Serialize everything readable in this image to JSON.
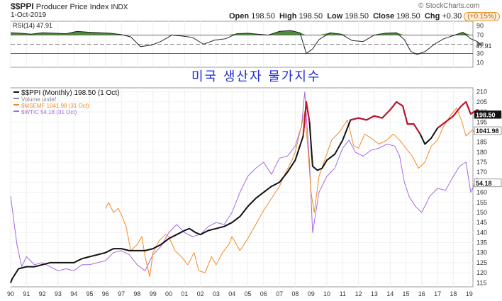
{
  "header": {
    "symbol": "$$PPI",
    "name": "Producer Price Index",
    "exchange": "INDX",
    "date": "1-Oct-2019",
    "open_label": "Open",
    "open": "198.50",
    "high_label": "High",
    "high": "198.50",
    "low_label": "Low",
    "low": "198.50",
    "close_label": "Close",
    "close": "198.50",
    "chg_label": "Chg",
    "chg": "+0.30",
    "chg_pct": "(+0.15%)",
    "watermark": "© StockCharts.com"
  },
  "overlay_text": "미국 생산자 물가지수",
  "colors": {
    "ppi": "#111111",
    "ppi_hi": "#c8102e",
    "msemf": "#f08a24",
    "wtic": "#a46be0",
    "rsi_fill": "#4e8a3c",
    "rsi_low_fill": "#8a3a38"
  },
  "chart_data": [
    {
      "type": "line",
      "title": "RSI(14) 47.91",
      "ylim": [
        0,
        100
      ],
      "levels": [
        70,
        30
      ],
      "ticks": [
        "90",
        "70",
        "50",
        "30",
        "10"
      ],
      "current_label": "47.91",
      "x_years": [
        1990,
        1990.6,
        1991.3,
        1992,
        1992.8,
        1993.5,
        1994.2,
        1995,
        1995.7,
        1996.3,
        1997,
        1997.6,
        1998.2,
        1998.9,
        1999.5,
        2000.2,
        2000.8,
        2001.5,
        2002.2,
        2002.9,
        2003.6,
        2004.3,
        2005,
        2005.6,
        2006.3,
        2007,
        2007.7,
        2008.3,
        2008.7,
        2009.1,
        2009.5,
        2010.2,
        2010.9,
        2011.6,
        2012.3,
        2013,
        2013.7,
        2014.4,
        2014.9,
        2015.3,
        2015.7,
        2016.2,
        2016.8,
        2017.4,
        2018.1,
        2018.6,
        2019.1,
        2019.5,
        2019.75
      ],
      "values": [
        75,
        74,
        72,
        75,
        74,
        73,
        78,
        76,
        75,
        74,
        71,
        66,
        45,
        48,
        56,
        70,
        68,
        65,
        50,
        59,
        62,
        73,
        74,
        72,
        70,
        78,
        80,
        75,
        30,
        40,
        60,
        75,
        72,
        58,
        56,
        70,
        74,
        75,
        60,
        35,
        28,
        34,
        50,
        62,
        70,
        76,
        62,
        56,
        48
      ]
    },
    {
      "type": "line",
      "xlabel": "",
      "ylabel": "",
      "x_ticks": [
        "90",
        "91",
        "92",
        "93",
        "94",
        "95",
        "96",
        "97",
        "98",
        "99",
        "00",
        "01",
        "02",
        "03",
        "04",
        "05",
        "06",
        "07",
        "08",
        "09",
        "10",
        "11",
        "12",
        "13",
        "14",
        "15",
        "16",
        "17",
        "18",
        "19"
      ],
      "y_ticks": [
        "210",
        "205",
        "200",
        "195",
        "190",
        "185",
        "180",
        "175",
        "170",
        "165",
        "160",
        "155",
        "150",
        "145",
        "140",
        "135",
        "130",
        "125",
        "120",
        "115"
      ],
      "ylim": [
        113,
        212
      ],
      "legend": [
        "$$PPI (Monthly) 198.50 (1 Oct)",
        "Volume undef",
        "$MSEMF 1041.98 (31 Oct)",
        "$WTIC 54.18 (31 Oct)"
      ],
      "end_labels": {
        "ppi": "198.50",
        "msemf": "1041.98",
        "wtic": "54.18"
      },
      "series": [
        {
          "name": "$$PPI (Monthly)",
          "x": [
            1990,
            1990.1,
            1990.5,
            1991,
            1991.5,
            1992,
            1992.5,
            1993,
            1993.5,
            1994,
            1994.5,
            1995,
            1995.5,
            1996,
            1996.5,
            1997,
            1997.5,
            1998,
            1998.5,
            1999,
            1999.5,
            2000,
            2000.5,
            2001,
            2001.3,
            2001.7,
            2002,
            2002.5,
            2003,
            2003.5,
            2004,
            2004.5,
            2005,
            2005.5,
            2006,
            2006.5,
            2007,
            2007.5,
            2008,
            2008.5,
            2008.7,
            2008.9,
            2009.1,
            2009.4,
            2009.7,
            2010,
            2010.5,
            2011,
            2011.5,
            2012,
            2012.5,
            2013,
            2013.5,
            2014,
            2014.4,
            2014.8,
            2015.1,
            2015.5,
            2015.9,
            2016.2,
            2016.6,
            2017,
            2017.5,
            2018,
            2018.5,
            2018.8,
            2019.1,
            2019.5,
            2019.75
          ],
          "y": [
            115,
            117,
            122,
            123,
            123,
            124,
            125,
            125,
            125,
            125,
            127,
            128,
            129,
            130,
            132,
            132,
            131,
            131,
            131,
            132,
            134,
            137,
            139,
            141,
            142,
            140,
            139,
            141,
            142,
            143,
            145,
            148,
            153,
            157,
            160,
            163,
            165,
            170,
            176,
            188,
            205,
            195,
            173,
            171,
            172,
            176,
            179,
            186,
            196,
            197,
            196,
            198,
            197,
            201,
            205,
            203,
            194,
            194,
            189,
            184,
            187,
            192,
            195,
            198,
            203,
            205,
            199,
            201,
            198.5
          ]
        },
        {
          "name": "$MSEMF",
          "x": [
            1996,
            1996.2,
            1996.5,
            1996.8,
            1997,
            1997.3,
            1997.6,
            1998,
            1998.3,
            1998.5,
            1998.8,
            1999,
            1999.4,
            1999.8,
            2000,
            2000.4,
            2000.8,
            2001.2,
            2001.6,
            2001.9,
            2002.3,
            2002.7,
            2003,
            2003.4,
            2003.8,
            2004,
            2004.5,
            2005,
            2005.5,
            2006,
            2006.5,
            2007,
            2007.4,
            2007.8,
            2008,
            2008.3,
            2008.6,
            2008.8,
            2009,
            2009.2,
            2009.5,
            2009.9,
            2010.3,
            2010.8,
            2011.3,
            2011.7,
            2012,
            2012.4,
            2012.8,
            2013.3,
            2013.8,
            2014.2,
            2014.6,
            2015,
            2015.4,
            2015.8,
            2016.2,
            2016.6,
            2017,
            2017.4,
            2017.8,
            2018.2,
            2018.5,
            2018.8,
            2019.2,
            2019.5,
            2019.75
          ],
          "y": [
            152,
            155,
            150,
            152,
            149,
            143,
            131,
            134,
            138,
            128,
            118,
            130,
            136,
            139,
            138,
            131,
            128,
            124,
            130,
            121,
            120,
            128,
            124,
            130,
            134,
            138,
            131,
            137,
            144,
            151,
            157,
            163,
            170,
            176,
            180,
            190,
            200,
            182,
            160,
            150,
            168,
            177,
            186,
            190,
            196,
            183,
            182,
            189,
            187,
            184,
            186,
            189,
            186,
            182,
            178,
            172,
            175,
            183,
            186,
            193,
            198,
            202,
            196,
            188,
            191,
            189,
            190
          ]
        },
        {
          "name": "$WTIC",
          "x": [
            1990,
            1990.4,
            1990.7,
            1991,
            1991.5,
            1992,
            1992.5,
            1993,
            1993.5,
            1994,
            1994.5,
            1995,
            1995.5,
            1996,
            1996.5,
            1997,
            1997.5,
            1998,
            1998.5,
            1999,
            1999.5,
            2000,
            2000.5,
            2001,
            2001.5,
            2002,
            2002.5,
            2003,
            2003.5,
            2004,
            2004.5,
            2005,
            2005.5,
            2006,
            2006.5,
            2007,
            2007.5,
            2008,
            2008.4,
            2008.6,
            2008.9,
            2009.1,
            2009.5,
            2010,
            2010.5,
            2011,
            2011.4,
            2011.8,
            2012.3,
            2012.8,
            2013.3,
            2013.8,
            2014.3,
            2014.6,
            2014.9,
            2015.2,
            2015.6,
            2016,
            2016.5,
            2017,
            2017.5,
            2018,
            2018.4,
            2018.8,
            2019.1,
            2019.5,
            2019.75
          ],
          "y": [
            158,
            134,
            123,
            128,
            124,
            125,
            123,
            121,
            122,
            121,
            124,
            124,
            125,
            126,
            130,
            131,
            129,
            124,
            121,
            129,
            133,
            140,
            144,
            140,
            138,
            139,
            143,
            145,
            144,
            150,
            160,
            168,
            172,
            175,
            169,
            177,
            178,
            183,
            193,
            210,
            175,
            140,
            160,
            168,
            172,
            182,
            186,
            180,
            178,
            181,
            182,
            184,
            183,
            178,
            165,
            158,
            153,
            150,
            158,
            162,
            161,
            168,
            173,
            175,
            160,
            167,
            163
          ]
        }
      ]
    }
  ]
}
